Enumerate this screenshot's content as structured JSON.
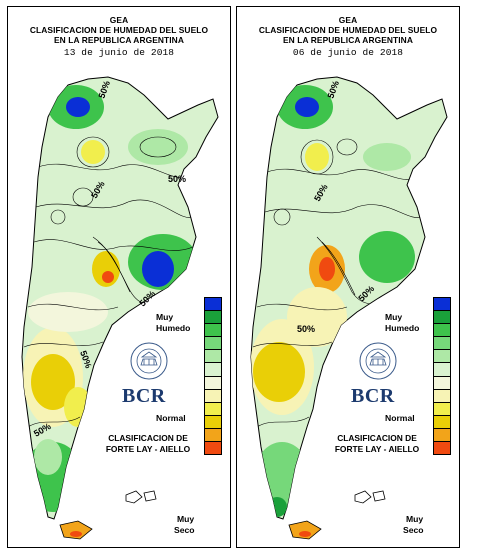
{
  "panels": [
    {
      "id": "left",
      "title_line1": "GEA",
      "title_line2": "CLASIFICACION DE HUMEDAD DEL SUELO",
      "title_line3": "EN LA REPUBLICA ARGENTINA",
      "date": "13  de junio de 2018",
      "contour_labels": [
        "50%",
        "50%",
        "50%",
        "50%",
        "50%",
        "50%"
      ]
    },
    {
      "id": "right",
      "title_line1": "GEA",
      "title_line2": "CLASIFICACION DE HUMEDAD DEL SUELO",
      "title_line3": "EN LA REPUBLICA ARGENTINA",
      "date": "06  de junio de 2018",
      "contour_labels": [
        "50%",
        "50%",
        "50%",
        "50%"
      ]
    }
  ],
  "legend": {
    "top_label_1": "Muy",
    "top_label_2": "Humedo",
    "mid_label": "Normal",
    "bottom_label_1": "Muy",
    "bottom_label_2": "Seco",
    "colors": [
      "#0a2fd6",
      "#1aa03a",
      "#3ec34c",
      "#76d87a",
      "#aee8a6",
      "#d9f2cf",
      "#f3f6dc",
      "#f7f3b5",
      "#f1ee4d",
      "#e9cf07",
      "#f2a41a",
      "#f04a10"
    ]
  },
  "logo": {
    "text": "BCR"
  },
  "credit": {
    "line1": "CLASIFICACION DE",
    "line2": "FORTE LAY - AIELLO"
  },
  "colors": {
    "very_wet": "#0a2fd6",
    "wet": "#3ec34c",
    "normal": "#d9f2cf",
    "dry": "#f1ee4d",
    "very_dry": "#f04a10",
    "border": "#000000"
  }
}
